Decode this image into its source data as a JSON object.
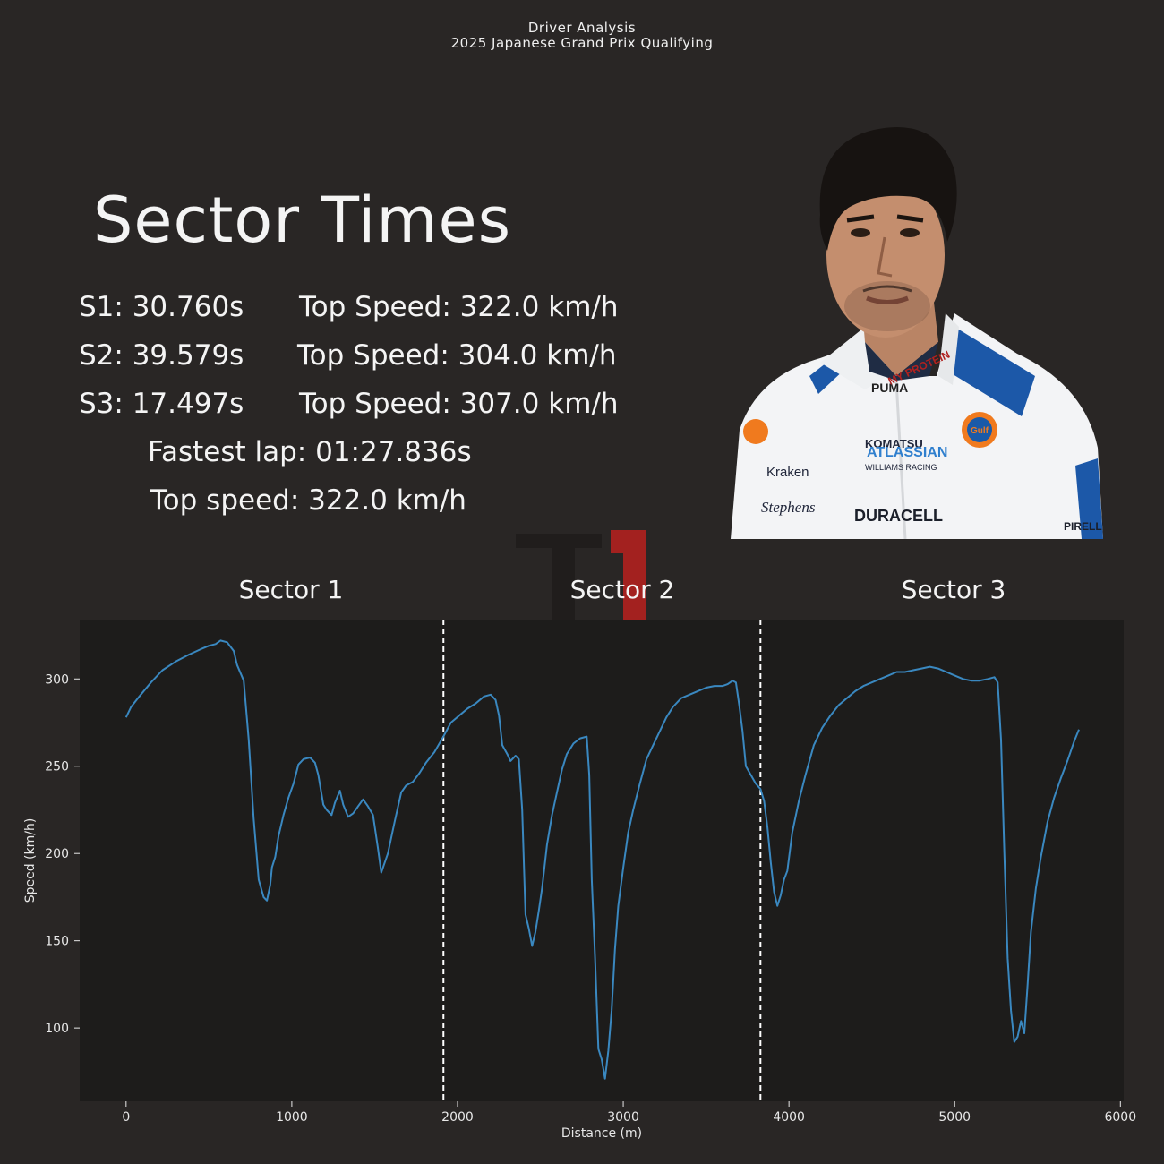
{
  "header": {
    "title": "Driver Analysis",
    "subtitle": "2025 Japanese Grand Prix Qualifying"
  },
  "stats": {
    "heading": "Sector Times",
    "s1": "S1: 30.760s",
    "s1_speed": "Top Speed: 322.0 km/h",
    "s2": "S2: 39.579s",
    "s2_speed": "Top Speed: 304.0 km/h",
    "s3": "S3: 17.497s",
    "s3_speed": "Top Speed: 307.0 km/h",
    "fastest_lap": "Fastest lap: 01:27.836s",
    "top_speed": "Top speed: 322.0 km/h"
  },
  "photo": {
    "icon": "driver-portrait-icon",
    "suit_text": [
      "Gulf",
      "ATLASSIAN",
      "WILLIAMS RACING",
      "DURACELL",
      "Kraken",
      "Stephens",
      "KOMATSU",
      "PUMA",
      "PIRELLI"
    ]
  },
  "colors": {
    "background": "#292625",
    "plot_bg": "#1d1c1b",
    "line": "#3a88c0",
    "divider": "#ffffff",
    "f1_red": "#b0211f"
  },
  "chart_data": {
    "type": "line",
    "xlabel": "Distance (m)",
    "ylabel": "Speed (km/h)",
    "xlim": [
      -280,
      6020
    ],
    "ylim": [
      58,
      334
    ],
    "xticks": [
      0,
      1000,
      2000,
      3000,
      4000,
      5000,
      6000
    ],
    "yticks": [
      100,
      150,
      200,
      250,
      300
    ],
    "sector_labels": [
      "Sector 1",
      "Sector 2",
      "Sector 3"
    ],
    "sector_boundaries": [
      1915,
      3828
    ],
    "grid": false,
    "series": [
      {
        "color": "#3a88c0",
        "points": [
          [
            0,
            278
          ],
          [
            30,
            284
          ],
          [
            80,
            290
          ],
          [
            150,
            298
          ],
          [
            220,
            305
          ],
          [
            300,
            310
          ],
          [
            380,
            314
          ],
          [
            450,
            317
          ],
          [
            500,
            319
          ],
          [
            540,
            320
          ],
          [
            570,
            322
          ],
          [
            610,
            321
          ],
          [
            650,
            316
          ],
          [
            670,
            308
          ],
          [
            710,
            299
          ],
          [
            740,
            265
          ],
          [
            770,
            220
          ],
          [
            800,
            185
          ],
          [
            830,
            175
          ],
          [
            850,
            173
          ],
          [
            870,
            182
          ],
          [
            880,
            192
          ],
          [
            900,
            198
          ],
          [
            920,
            210
          ],
          [
            950,
            222
          ],
          [
            980,
            232
          ],
          [
            1010,
            240
          ],
          [
            1040,
            251
          ],
          [
            1070,
            254
          ],
          [
            1110,
            255
          ],
          [
            1140,
            252
          ],
          [
            1160,
            245
          ],
          [
            1190,
            228
          ],
          [
            1210,
            225
          ],
          [
            1240,
            222
          ],
          [
            1260,
            229
          ],
          [
            1290,
            236
          ],
          [
            1310,
            228
          ],
          [
            1340,
            221
          ],
          [
            1370,
            223
          ],
          [
            1400,
            227
          ],
          [
            1430,
            231
          ],
          [
            1460,
            227
          ],
          [
            1490,
            222
          ],
          [
            1520,
            203
          ],
          [
            1540,
            189
          ],
          [
            1580,
            200
          ],
          [
            1620,
            218
          ],
          [
            1660,
            235
          ],
          [
            1690,
            239
          ],
          [
            1730,
            241
          ],
          [
            1770,
            246
          ],
          [
            1810,
            252
          ],
          [
            1860,
            258
          ],
          [
            1915,
            267
          ],
          [
            1960,
            275
          ],
          [
            2010,
            279
          ],
          [
            2060,
            283
          ],
          [
            2110,
            286
          ],
          [
            2160,
            290
          ],
          [
            2200,
            291
          ],
          [
            2230,
            288
          ],
          [
            2250,
            279
          ],
          [
            2270,
            262
          ],
          [
            2300,
            257
          ],
          [
            2320,
            253
          ],
          [
            2350,
            256
          ],
          [
            2370,
            254
          ],
          [
            2390,
            225
          ],
          [
            2410,
            165
          ],
          [
            2430,
            157
          ],
          [
            2450,
            147
          ],
          [
            2470,
            155
          ],
          [
            2490,
            167
          ],
          [
            2510,
            180
          ],
          [
            2540,
            205
          ],
          [
            2570,
            222
          ],
          [
            2600,
            235
          ],
          [
            2630,
            248
          ],
          [
            2660,
            257
          ],
          [
            2700,
            263
          ],
          [
            2740,
            266
          ],
          [
            2780,
            267
          ],
          [
            2795,
            245
          ],
          [
            2810,
            185
          ],
          [
            2830,
            140
          ],
          [
            2850,
            88
          ],
          [
            2870,
            82
          ],
          [
            2890,
            71
          ],
          [
            2910,
            87
          ],
          [
            2930,
            110
          ],
          [
            2950,
            145
          ],
          [
            2970,
            170
          ],
          [
            3000,
            192
          ],
          [
            3030,
            212
          ],
          [
            3060,
            225
          ],
          [
            3100,
            240
          ],
          [
            3140,
            254
          ],
          [
            3180,
            262
          ],
          [
            3220,
            270
          ],
          [
            3260,
            278
          ],
          [
            3300,
            284
          ],
          [
            3350,
            289
          ],
          [
            3400,
            291
          ],
          [
            3450,
            293
          ],
          [
            3500,
            295
          ],
          [
            3550,
            296
          ],
          [
            3600,
            296
          ],
          [
            3630,
            297
          ],
          [
            3660,
            299
          ],
          [
            3680,
            298
          ],
          [
            3700,
            285
          ],
          [
            3720,
            270
          ],
          [
            3740,
            250
          ],
          [
            3770,
            245
          ],
          [
            3800,
            240
          ],
          [
            3828,
            237
          ],
          [
            3850,
            230
          ],
          [
            3870,
            215
          ],
          [
            3890,
            195
          ],
          [
            3910,
            178
          ],
          [
            3930,
            170
          ],
          [
            3950,
            176
          ],
          [
            3970,
            185
          ],
          [
            3990,
            190
          ],
          [
            4020,
            212
          ],
          [
            4060,
            230
          ],
          [
            4100,
            245
          ],
          [
            4150,
            262
          ],
          [
            4200,
            272
          ],
          [
            4250,
            279
          ],
          [
            4300,
            285
          ],
          [
            4350,
            289
          ],
          [
            4400,
            293
          ],
          [
            4450,
            296
          ],
          [
            4500,
            298
          ],
          [
            4550,
            300
          ],
          [
            4600,
            302
          ],
          [
            4650,
            304
          ],
          [
            4700,
            304
          ],
          [
            4750,
            305
          ],
          [
            4800,
            306
          ],
          [
            4850,
            307
          ],
          [
            4900,
            306
          ],
          [
            4950,
            304
          ],
          [
            5000,
            302
          ],
          [
            5050,
            300
          ],
          [
            5100,
            299
          ],
          [
            5150,
            299
          ],
          [
            5200,
            300
          ],
          [
            5240,
            301
          ],
          [
            5260,
            298
          ],
          [
            5280,
            265
          ],
          [
            5300,
            200
          ],
          [
            5320,
            140
          ],
          [
            5340,
            110
          ],
          [
            5360,
            92
          ],
          [
            5380,
            95
          ],
          [
            5400,
            104
          ],
          [
            5420,
            97
          ],
          [
            5440,
            125
          ],
          [
            5460,
            155
          ],
          [
            5490,
            180
          ],
          [
            5520,
            198
          ],
          [
            5560,
            218
          ],
          [
            5600,
            232
          ],
          [
            5640,
            243
          ],
          [
            5680,
            253
          ],
          [
            5720,
            264
          ],
          [
            5750,
            271
          ]
        ]
      }
    ]
  }
}
